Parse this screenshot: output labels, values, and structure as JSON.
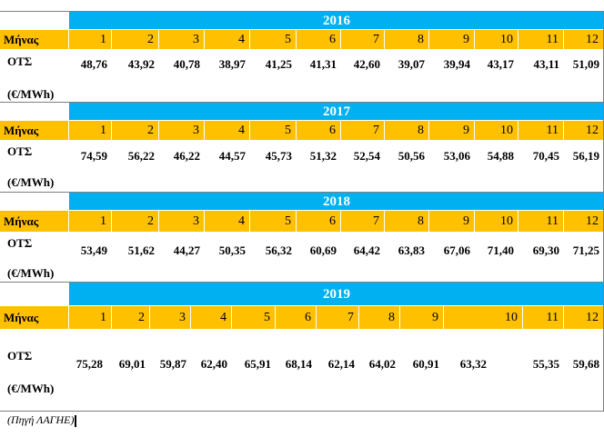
{
  "months_label": "Μήνας",
  "ots_label": "ΟΤΣ",
  "unit_label": "(€/MWh)",
  "source": "(Πηγή ΛΑΓΗΕ)",
  "months": [
    "1",
    "2",
    "3",
    "4",
    "5",
    "6",
    "7",
    "8",
    "9",
    "10",
    "11",
    "12"
  ],
  "years": [
    {
      "year": "2016",
      "values": [
        "48,76",
        "43,92",
        "40,78",
        "38,97",
        "41,25",
        "41,31",
        "42,60",
        "39,07",
        "39,94",
        "43,17",
        "43,11",
        "51,09"
      ]
    },
    {
      "year": "2017",
      "values": [
        "74,59",
        "56,22",
        "46,22",
        "44,57",
        "45,73",
        "51,32",
        "52,54",
        "50,56",
        "53,06",
        "54,88",
        "70,45",
        "56,19"
      ]
    },
    {
      "year": "2018",
      "values": [
        "53,49",
        "51,62",
        "44,27",
        "50,35",
        "56,32",
        "60,69",
        "64,42",
        "63,83",
        "67,06",
        "71,40",
        "69,30",
        "71,25"
      ]
    },
    {
      "year": "2019",
      "values": [
        "75,28",
        "69,01",
        "59,87",
        "62,40",
        "65,91",
        "68,14",
        "62,14",
        "64,02",
        "60,91",
        "63,32",
        "55,35",
        "59,68"
      ]
    }
  ]
}
